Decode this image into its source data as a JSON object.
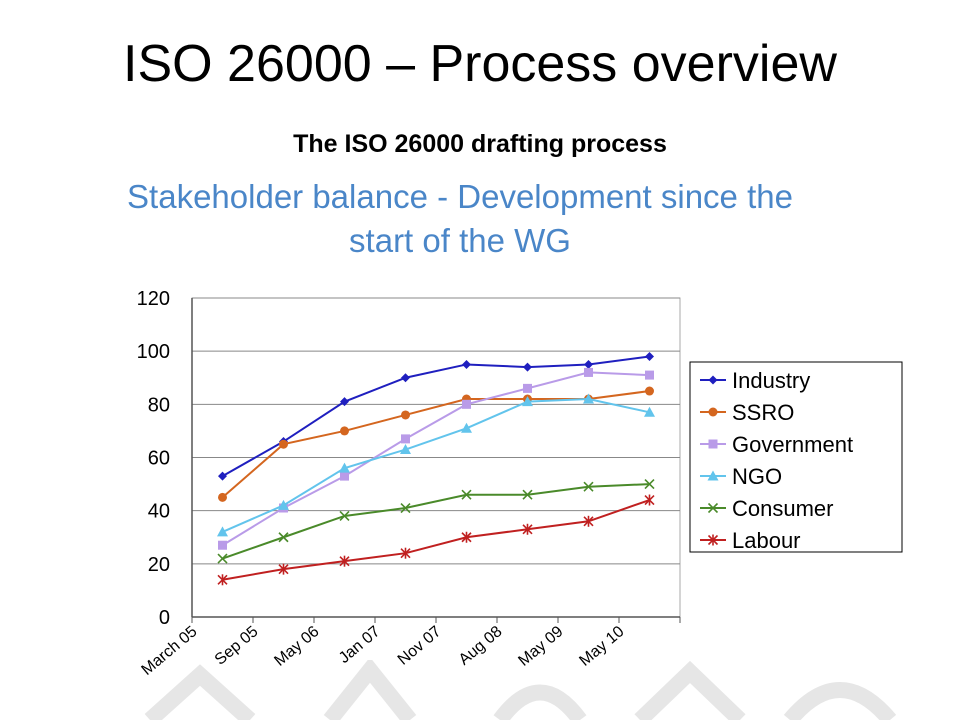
{
  "slide": {
    "title": "ISO 26000 – Process overview",
    "subtitle": "The ISO 26000 drafting process"
  },
  "colors": {
    "chart_title": "#4a86c8",
    "grid": "#888888",
    "plot_border": "#aaaaaa"
  },
  "chart_data": {
    "type": "line",
    "title_lines": [
      "Stakeholder balance - Development since the",
      "start of the WG"
    ],
    "xlabel": "",
    "ylabel": "",
    "categories": [
      "March 05",
      "Sep 05",
      "May 06",
      "Jan 07",
      "Nov 07",
      "Aug 08",
      "May 09",
      "May 10"
    ],
    "ylim": [
      0,
      120
    ],
    "yticks": [
      0,
      20,
      40,
      60,
      80,
      100,
      120
    ],
    "grid": true,
    "legend_position": "right",
    "series": [
      {
        "name": "Industry",
        "color": "#1f1fbf",
        "marker": "diamond",
        "values": [
          53,
          66,
          81,
          90,
          95,
          94,
          95,
          98
        ]
      },
      {
        "name": "SSRO",
        "color": "#d4661f",
        "marker": "circle",
        "values": [
          45,
          65,
          70,
          76,
          82,
          82,
          82,
          85
        ]
      },
      {
        "name": "Government",
        "color": "#b99be8",
        "marker": "square",
        "values": [
          27,
          41,
          53,
          67,
          80,
          86,
          92,
          91
        ]
      },
      {
        "name": "NGO",
        "color": "#62c4ec",
        "marker": "triangle",
        "values": [
          32,
          42,
          56,
          63,
          71,
          81,
          82,
          77
        ]
      },
      {
        "name": "Consumer",
        "color": "#4a8a2a",
        "marker": "x",
        "values": [
          22,
          30,
          38,
          41,
          46,
          46,
          49,
          50
        ]
      },
      {
        "name": "Labour",
        "color": "#c02020",
        "marker": "star",
        "values": [
          14,
          18,
          21,
          24,
          30,
          33,
          36,
          44
        ]
      }
    ]
  }
}
